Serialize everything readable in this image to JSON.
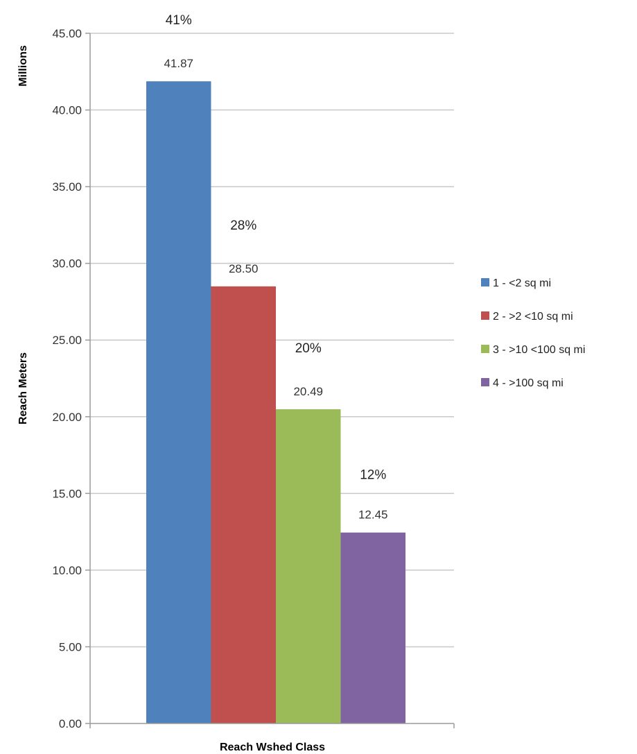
{
  "chart_data": {
    "type": "bar",
    "title": "",
    "xlabel": "Reach Wshed Class",
    "ylabel": "Reach Meters",
    "yunit_label": "Millions",
    "ylim": [
      0,
      45
    ],
    "ytick_step": 5,
    "yticks": [
      "0.00",
      "5.00",
      "10.00",
      "15.00",
      "20.00",
      "25.00",
      "30.00",
      "35.00",
      "40.00",
      "45.00"
    ],
    "grid": true,
    "legend_position": "right",
    "categories": [
      "Reach Wshed Class"
    ],
    "series": [
      {
        "name": "1 - <2 sq mi",
        "values": [
          41.87
        ],
        "value_label": "41.87",
        "percent_label": "41%",
        "color": "#4f81bd"
      },
      {
        "name": "2 - >2 <10 sq mi",
        "values": [
          28.5
        ],
        "value_label": "28.50",
        "percent_label": "28%",
        "color": "#c0504d"
      },
      {
        "name": "3 - >10 <100 sq mi",
        "values": [
          20.49
        ],
        "value_label": "20.49",
        "percent_label": "20%",
        "color": "#9bbb59"
      },
      {
        "name": "4 - >100 sq mi",
        "values": [
          12.45
        ],
        "value_label": "12.45",
        "percent_label": "12%",
        "color": "#8064a2"
      }
    ]
  }
}
